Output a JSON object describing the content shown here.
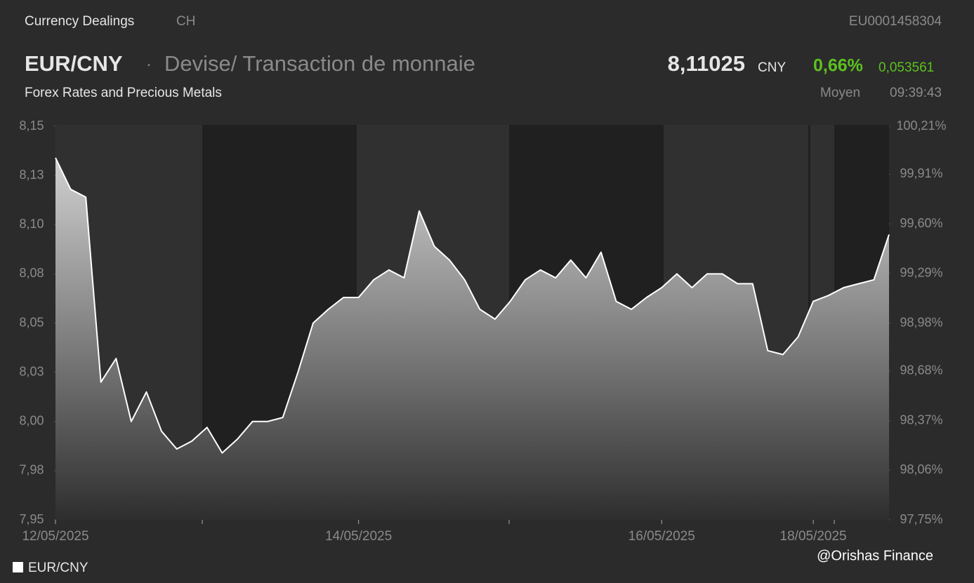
{
  "header": {
    "section": "Currency Dealings",
    "country": "CH",
    "isin": "EU0001458304",
    "symbol": "EUR/CNY",
    "instrument": "Devise/ Transaction de monnaie",
    "price": "8,11025",
    "currency": "CNY",
    "change_percent": "0,66%",
    "change": "0,053561",
    "category": "Forex Rates and Precious Metals",
    "price_type": "Moyen",
    "time": "09:39:43"
  },
  "chart_data": {
    "type": "area",
    "categories": [
      "12/05/2025",
      null,
      null,
      null,
      null,
      null,
      null,
      null,
      null,
      null,
      null,
      null,
      null,
      null,
      null,
      null,
      null,
      null,
      null,
      null,
      "14/05/2025",
      null,
      null,
      null,
      null,
      null,
      null,
      null,
      null,
      null,
      null,
      null,
      null,
      null,
      null,
      null,
      null,
      null,
      null,
      null,
      "16/05/2025",
      null,
      null,
      null,
      null,
      null,
      null,
      null,
      null,
      null,
      "18/05/2025",
      null,
      null,
      null,
      null,
      null
    ],
    "series": [
      {
        "name": "EUR/CNY",
        "color": "#ffffff",
        "values": [
          8.134,
          8.118,
          8.114,
          8.02,
          8.032,
          8.0,
          8.015,
          7.995,
          7.986,
          7.99,
          7.997,
          7.984,
          7.991,
          8.0,
          8.0,
          8.002,
          8.025,
          8.05,
          8.057,
          8.063,
          8.063,
          8.072,
          8.077,
          8.073,
          8.107,
          8.089,
          8.082,
          8.072,
          8.057,
          8.052,
          8.061,
          8.072,
          8.077,
          8.073,
          8.082,
          8.073,
          8.086,
          8.061,
          8.057,
          8.063,
          8.068,
          8.075,
          8.068,
          8.075,
          8.075,
          8.07,
          8.07,
          8.036,
          8.034,
          8.043,
          8.061,
          8.064,
          8.068,
          8.07,
          8.072,
          8.095
        ]
      }
    ],
    "ylim": [
      7.95,
      8.15
    ],
    "yticks": [
      {
        "value": 7.95,
        "label": "7,95"
      },
      {
        "value": 7.975,
        "label": "7,98"
      },
      {
        "value": 8.0,
        "label": "8,00"
      },
      {
        "value": 8.025,
        "label": "8,03"
      },
      {
        "value": 8.05,
        "label": "8,05"
      },
      {
        "value": 8.075,
        "label": "8,08"
      },
      {
        "value": 8.1,
        "label": "8,10"
      },
      {
        "value": 8.125,
        "label": "8,13"
      },
      {
        "value": 8.15,
        "label": "8,15"
      }
    ],
    "y2lim": [
      97.75,
      100.21
    ],
    "y2ticks": [
      {
        "value": 97.75,
        "label": "97,75%"
      },
      {
        "value": 98.06,
        "label": "98,06%"
      },
      {
        "value": 98.37,
        "label": "98,37%"
      },
      {
        "value": 98.68,
        "label": "98,68%"
      },
      {
        "value": 98.98,
        "label": "98,98%"
      },
      {
        "value": 99.29,
        "label": "99,29%"
      },
      {
        "value": 99.6,
        "label": "99,60%"
      },
      {
        "value": 99.91,
        "label": "99,91%"
      },
      {
        "value": 100.21,
        "label": "100,21%"
      }
    ]
  },
  "watermark": "@Orishas Finance"
}
